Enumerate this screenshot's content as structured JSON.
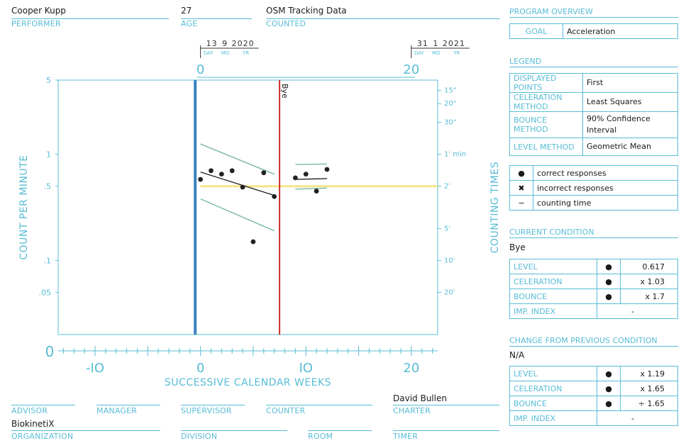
{
  "header": {
    "performer": {
      "value": "Cooper Kupp",
      "label": "PERFORMER"
    },
    "age": {
      "value": "27",
      "label": "AGE"
    },
    "counted": {
      "value": "OSM Tracking Data",
      "label": "COUNTED"
    }
  },
  "program_overview": {
    "title": "PROGRAM OVERVIEW",
    "goal_label": "GOAL",
    "goal_value": "Acceleration"
  },
  "legend": {
    "title": "LEGEND",
    "rows": [
      {
        "k": "DISPLAYED POINTS",
        "v": "First"
      },
      {
        "k": "CELERATION METHOD",
        "v": "Least Squares"
      },
      {
        "k": "BOUNCE METHOD",
        "v": "90% Confidence Interval"
      },
      {
        "k": "LEVEL METHOD",
        "v": "Geometric Mean"
      }
    ],
    "symbols": [
      {
        "sym": "●",
        "icon": "dot-icon",
        "label": "correct responses"
      },
      {
        "sym": "✖",
        "icon": "cross-icon",
        "label": "incorrect responses"
      },
      {
        "sym": "−",
        "icon": "dash-icon",
        "label": "counting time"
      }
    ]
  },
  "current_condition": {
    "title": "CURRENT CONDITION",
    "name": "Bye",
    "rows": [
      {
        "k": "LEVEL",
        "sym": "●",
        "v": "0.617"
      },
      {
        "k": "CELERATION",
        "sym": "●",
        "v": "x 1.03"
      },
      {
        "k": "BOUNCE",
        "sym": "●",
        "v": "x 1.7"
      },
      {
        "k": "IMP. INDEX",
        "sym": "",
        "v": "-"
      }
    ]
  },
  "change_condition": {
    "title": "CHANGE FROM PREVIOUS CONDITION",
    "name": "N/A",
    "rows": [
      {
        "k": "LEVEL",
        "sym": "●",
        "v": "x 1.19"
      },
      {
        "k": "CELERATION",
        "sym": "●",
        "v": "x 1.65"
      },
      {
        "k": "BOUNCE",
        "sym": "●",
        "v": "÷ 1.65"
      },
      {
        "k": "IMP. INDEX",
        "sym": "",
        "v": "-"
      }
    ]
  },
  "footer": {
    "advisor": "ADVISOR",
    "manager": "MANAGER",
    "supervisor": "SUPERVISOR",
    "counter": "COUNTER",
    "charter_label": "CHARTER",
    "charter_value": "David Bullen",
    "organization_label": "ORGANIZATION",
    "organization_value": "BiokinetiX",
    "division": "DIVISION",
    "room": "ROOM",
    "timer": "TIMER"
  },
  "chart_data": {
    "type": "scatter",
    "xlabel": "SUCCESSIVE CALENDAR WEEKS",
    "ylabel": "COUNT PER MINUTE",
    "ylabel_right": "COUNTING TIMES",
    "xlim": [
      -13.5,
      22.5
    ],
    "ylim": [
      0.02,
      5
    ],
    "y_log": true,
    "x_ticks": [
      {
        "v": -10,
        "t": "-IO"
      },
      {
        "v": 0,
        "t": "0"
      },
      {
        "v": 10,
        "t": "IO"
      },
      {
        "v": 20,
        "t": "20"
      }
    ],
    "x_origin_label": "0",
    "top_ticks": [
      {
        "v": 0,
        "t": "0"
      },
      {
        "v": 20,
        "t": "20"
      }
    ],
    "y_ticks": [
      {
        "v": 5,
        "t": "5"
      },
      {
        "v": 1,
        "t": "1"
      },
      {
        "v": 0.5,
        "t": ".5"
      },
      {
        "v": 0.1,
        "t": ".1"
      },
      {
        "v": 0.05,
        "t": ".05"
      }
    ],
    "right_ticks": [
      {
        "v": 4,
        "t": "15\""
      },
      {
        "v": 3,
        "t": "20\""
      },
      {
        "v": 2,
        "t": "30\""
      },
      {
        "v": 1,
        "t": "1' min"
      },
      {
        "v": 0.5,
        "t": "2'"
      },
      {
        "v": 0.2,
        "t": "5'"
      },
      {
        "v": 0.1,
        "t": "10'"
      },
      {
        "v": 0.05,
        "t": "20'"
      }
    ],
    "start_date": {
      "day": "13",
      "mo": "9",
      "yr": "2020",
      "x": 0
    },
    "end_date": {
      "day": "31",
      "mo": "1",
      "yr": "2021",
      "x": 20
    },
    "date_sub": {
      "day": "DAY",
      "mo": "MO",
      "yr": "YR"
    },
    "condition_line": {
      "x": -0.5,
      "color": "#3a82c0"
    },
    "phase_line": {
      "x": 7.5,
      "label": "Bye",
      "color": "#cc2c2c"
    },
    "counting_time_line": {
      "y": 0.5,
      "x_from": 0,
      "x_to": 22.5,
      "color": "#f5e58a"
    },
    "series": [
      {
        "name": "correct responses",
        "marker": "dot",
        "points": [
          [
            0,
            0.58
          ],
          [
            1,
            0.7
          ],
          [
            2,
            0.65
          ],
          [
            3,
            0.7
          ],
          [
            4,
            0.49
          ],
          [
            5,
            0.15
          ],
          [
            6,
            0.67
          ],
          [
            7,
            0.4
          ],
          [
            9,
            0.6
          ],
          [
            10,
            0.65
          ],
          [
            11,
            0.45
          ],
          [
            12,
            0.72
          ]
        ]
      }
    ],
    "celeration_lines": [
      {
        "x": [
          0,
          7
        ],
        "y": [
          0.68,
          0.41
        ],
        "color": "#222222"
      },
      {
        "x": [
          0,
          7
        ],
        "y": [
          1.25,
          0.65
        ],
        "color": "#6fb39c"
      },
      {
        "x": [
          0,
          7
        ],
        "y": [
          0.38,
          0.19
        ],
        "color": "#6fb39c"
      },
      {
        "x": [
          9,
          12
        ],
        "y": [
          0.58,
          0.59
        ],
        "color": "#222222"
      },
      {
        "x": [
          9,
          12
        ],
        "y": [
          0.8,
          0.81
        ],
        "color": "#6fb39c"
      },
      {
        "x": [
          9,
          12
        ],
        "y": [
          0.47,
          0.48
        ],
        "color": "#6fb39c"
      }
    ],
    "colors": {
      "axis": "#58bcd6",
      "grid": "#58bcd6",
      "points": "#222222"
    }
  }
}
